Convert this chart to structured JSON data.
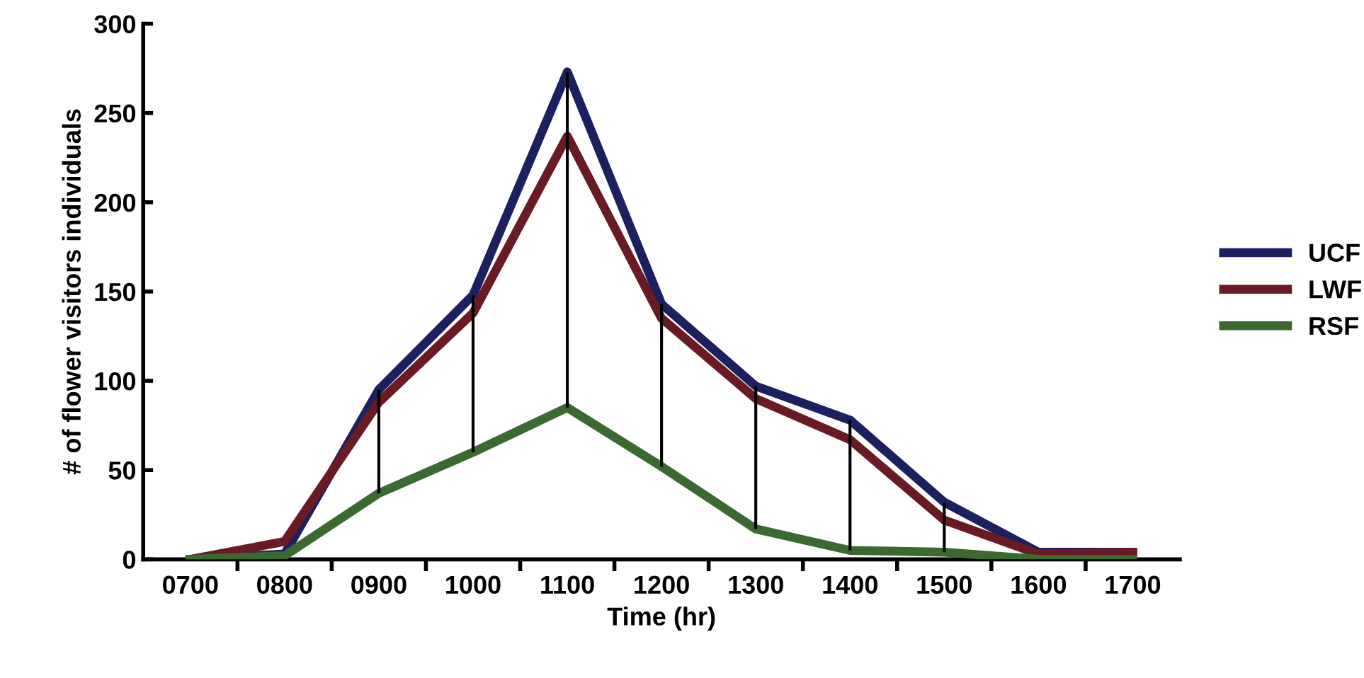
{
  "chart_data": {
    "type": "line",
    "xlabel": "Time (hr)",
    "ylabel": "# of flower visitors individuals",
    "categories": [
      "0700",
      "0800",
      "0900",
      "1000",
      "1100",
      "1200",
      "1300",
      "1400",
      "1500",
      "1600",
      "1700"
    ],
    "series": [
      {
        "name": "UCF",
        "color": "#1c2060",
        "values": [
          0,
          3,
          95,
          148,
          273,
          143,
          97,
          78,
          32,
          4,
          4
        ]
      },
      {
        "name": "LWF",
        "color": "#6a1a24",
        "values": [
          0,
          10,
          88,
          138,
          237,
          135,
          90,
          67,
          22,
          3,
          4
        ]
      },
      {
        "name": "RSF",
        "color": "#3a6a30",
        "values": [
          0,
          2,
          37,
          60,
          85,
          52,
          17,
          5,
          4,
          0,
          0
        ],
        "errors": [
          null,
          null,
          [
            37,
            95
          ],
          [
            60,
            148
          ],
          [
            85,
            273
          ],
          [
            52,
            143
          ],
          [
            17,
            97
          ],
          [
            5,
            78
          ],
          [
            4,
            32
          ],
          null,
          null
        ]
      }
    ],
    "ylim": [
      0,
      300
    ],
    "yticks": [
      0,
      50,
      100,
      150,
      200,
      250,
      300
    ],
    "grid": false,
    "legend": "right",
    "marker": "none",
    "line_style": "solid"
  }
}
